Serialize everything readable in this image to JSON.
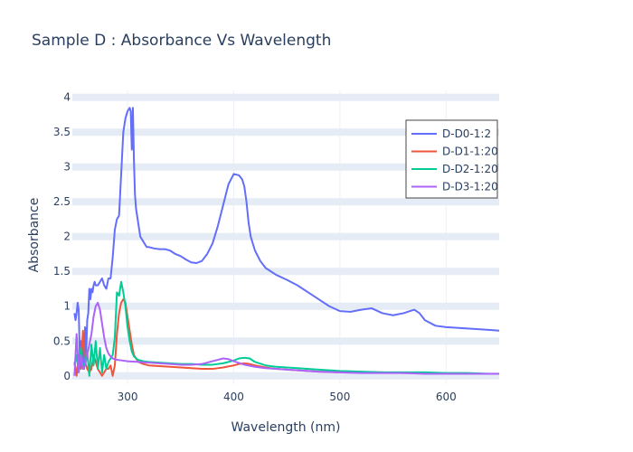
{
  "chart_data": {
    "type": "line",
    "title": "Sample D : Absorbance Vs Wavelength",
    "xlabel": "Wavelength (nm)",
    "ylabel": "Absorbance",
    "xlim": [
      248,
      650
    ],
    "ylim": [
      -0.12,
      4.1
    ],
    "x_ticks": [
      300,
      400,
      500,
      600
    ],
    "y_ticks": [
      0,
      0.5,
      1,
      1.5,
      2,
      2.5,
      3,
      3.5,
      4
    ],
    "y_tick_labels": [
      "0",
      "0.5",
      "1",
      "1.5",
      "2",
      "2.5",
      "3",
      "3.5",
      "4"
    ],
    "grid": true,
    "legend_position": "top-right",
    "series": [
      {
        "name": "D-D0-1:2",
        "color": "#636efa",
        "x": [
          250,
          251,
          252,
          253,
          254,
          255,
          256,
          257,
          258,
          259,
          260,
          261,
          262,
          263,
          264,
          265,
          266,
          267,
          268,
          269,
          270,
          272,
          274,
          276,
          278,
          280,
          282,
          284,
          286,
          288,
          290,
          292,
          294,
          296,
          298,
          300,
          302,
          303,
          304,
          304.5,
          305,
          305.5,
          306,
          307,
          308,
          310,
          312,
          314,
          316,
          318,
          320,
          325,
          330,
          335,
          340,
          345,
          350,
          355,
          360,
          365,
          370,
          375,
          380,
          385,
          390,
          395,
          400,
          405,
          408,
          410,
          412,
          414,
          416,
          420,
          425,
          430,
          435,
          440,
          450,
          460,
          470,
          480,
          490,
          500,
          510,
          520,
          530,
          540,
          550,
          560,
          570,
          575,
          580,
          590,
          600,
          620,
          640,
          650
        ],
        "y": [
          0.9,
          0.8,
          0.9,
          1.05,
          0.95,
          0.3,
          0.5,
          0.2,
          0.6,
          0.1,
          0.7,
          0.3,
          0.8,
          0.9,
          1.25,
          1.1,
          1.25,
          1.2,
          1.3,
          1.35,
          1.3,
          1.3,
          1.35,
          1.4,
          1.3,
          1.25,
          1.4,
          1.4,
          1.7,
          2.1,
          2.25,
          2.3,
          2.9,
          3.5,
          3.7,
          3.8,
          3.85,
          3.8,
          3.25,
          3.4,
          3.85,
          3.5,
          3.1,
          2.6,
          2.4,
          2.2,
          2.0,
          1.95,
          1.9,
          1.85,
          1.85,
          1.83,
          1.82,
          1.82,
          1.8,
          1.75,
          1.72,
          1.67,
          1.63,
          1.62,
          1.65,
          1.75,
          1.9,
          2.15,
          2.45,
          2.75,
          2.9,
          2.88,
          2.82,
          2.72,
          2.5,
          2.2,
          2.0,
          1.8,
          1.65,
          1.55,
          1.5,
          1.45,
          1.38,
          1.3,
          1.2,
          1.1,
          1.0,
          0.93,
          0.92,
          0.95,
          0.97,
          0.9,
          0.87,
          0.9,
          0.95,
          0.9,
          0.8,
          0.72,
          0.7,
          0.68,
          0.66,
          0.65
        ]
      },
      {
        "name": "D-D1-1:20",
        "color": "#ef553b",
        "x": [
          250,
          252,
          254,
          256,
          258,
          260,
          262,
          264,
          266,
          268,
          270,
          272,
          274,
          276,
          278,
          280,
          282,
          284,
          286,
          288,
          290,
          292,
          294,
          296,
          298,
          300,
          302,
          304,
          306,
          308,
          310,
          315,
          320,
          330,
          340,
          350,
          360,
          370,
          380,
          390,
          400,
          405,
          410,
          415,
          420,
          430,
          440,
          450,
          460,
          480,
          500,
          520,
          540,
          560,
          580,
          600,
          620,
          640,
          650
        ],
        "y": [
          0.2,
          0.0,
          0.3,
          0.1,
          0.65,
          0.2,
          0.1,
          0.05,
          0.1,
          0.3,
          0.2,
          0.1,
          0.05,
          0.0,
          0.05,
          0.1,
          0.1,
          0.15,
          0.0,
          0.15,
          0.6,
          0.9,
          1.05,
          1.1,
          1.05,
          0.85,
          0.65,
          0.45,
          0.3,
          0.25,
          0.2,
          0.17,
          0.15,
          0.14,
          0.13,
          0.12,
          0.11,
          0.1,
          0.1,
          0.12,
          0.15,
          0.17,
          0.18,
          0.17,
          0.15,
          0.12,
          0.1,
          0.09,
          0.08,
          0.06,
          0.05,
          0.05,
          0.05,
          0.04,
          0.04,
          0.03,
          0.03,
          0.03,
          0.03
        ]
      },
      {
        "name": "D-D2-1:20",
        "color": "#00cc96",
        "x": [
          250,
          252,
          254,
          256,
          258,
          260,
          262,
          264,
          266,
          268,
          270,
          272,
          274,
          276,
          278,
          280,
          282,
          284,
          286,
          288,
          290,
          292,
          294,
          296,
          298,
          300,
          302,
          304,
          306,
          308,
          310,
          315,
          320,
          330,
          340,
          350,
          360,
          370,
          380,
          390,
          400,
          405,
          410,
          415,
          420,
          430,
          440,
          450,
          460,
          480,
          500,
          520,
          540,
          560,
          580,
          600,
          620,
          640,
          650
        ],
        "y": [
          0.15,
          0.3,
          0.05,
          0.4,
          0.1,
          0.2,
          0.35,
          0.0,
          0.45,
          0.15,
          0.5,
          0.1,
          0.4,
          0.05,
          0.3,
          0.1,
          0.2,
          0.25,
          0.3,
          0.55,
          1.2,
          1.15,
          1.35,
          1.2,
          1.0,
          0.7,
          0.5,
          0.35,
          0.28,
          0.25,
          0.23,
          0.21,
          0.2,
          0.19,
          0.18,
          0.17,
          0.17,
          0.16,
          0.16,
          0.18,
          0.22,
          0.25,
          0.26,
          0.25,
          0.2,
          0.15,
          0.13,
          0.12,
          0.11,
          0.09,
          0.07,
          0.06,
          0.05,
          0.05,
          0.05,
          0.04,
          0.04,
          0.03,
          0.03
        ]
      },
      {
        "name": "D-D3-1:20",
        "color": "#ab63fa",
        "x": [
          250,
          252,
          254,
          256,
          258,
          260,
          262,
          264,
          266,
          268,
          270,
          272,
          274,
          276,
          278,
          280,
          282,
          284,
          286,
          288,
          290,
          295,
          300,
          310,
          320,
          330,
          340,
          350,
          360,
          370,
          380,
          385,
          390,
          395,
          400,
          410,
          420,
          430,
          440,
          450,
          460,
          480,
          500,
          520,
          540,
          560,
          580,
          600,
          620,
          640,
          650
        ],
        "y": [
          0.0,
          0.6,
          0.05,
          0.3,
          0.1,
          0.15,
          0.3,
          0.45,
          0.6,
          0.85,
          1.0,
          1.05,
          0.95,
          0.75,
          0.55,
          0.4,
          0.32,
          0.28,
          0.25,
          0.24,
          0.23,
          0.22,
          0.21,
          0.2,
          0.19,
          0.18,
          0.17,
          0.16,
          0.16,
          0.17,
          0.21,
          0.23,
          0.25,
          0.24,
          0.21,
          0.16,
          0.13,
          0.11,
          0.1,
          0.09,
          0.08,
          0.06,
          0.05,
          0.04,
          0.04,
          0.04,
          0.03,
          0.03,
          0.03,
          0.03,
          0.03
        ]
      }
    ]
  }
}
